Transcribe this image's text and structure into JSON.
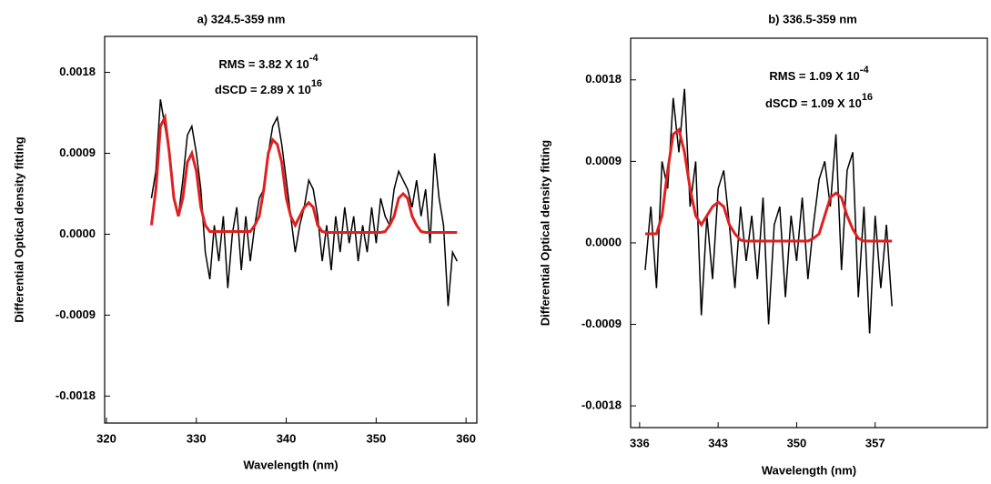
{
  "chart_data": [
    {
      "type": "line",
      "title": "a) 324.5-359 nm",
      "xlabel": "Wavelength (nm)",
      "ylabel": "Differential Optical density fitting",
      "annotations": [
        {
          "text": "RMS = 3.82 X 10",
          "sup": "-4"
        },
        {
          "text": "dSCD = 2.89 X 10",
          "sup": "16"
        }
      ],
      "xlim": [
        319.8,
        361.2
      ],
      "xticks": [
        320,
        330,
        340,
        350,
        360
      ],
      "ylim": [
        -0.0021,
        0.0022
      ],
      "yticks": [
        {
          "value": -0.0018,
          "label": "-0.0018"
        },
        {
          "value": -0.0009,
          "label": "-0.0009"
        },
        {
          "value": 0,
          "label": "0.0000"
        },
        {
          "value": 0.0009,
          "label": "0.0009"
        },
        0.0018
      ],
      "x": [
        325,
        325.5,
        326,
        326.5,
        327,
        327.5,
        328,
        328.5,
        329,
        329.5,
        330,
        330.5,
        331,
        331.5,
        332,
        332.5,
        333,
        333.5,
        334,
        334.5,
        335,
        335.5,
        336,
        336.5,
        337,
        337.5,
        338,
        338.5,
        339,
        339.5,
        340,
        340.5,
        341,
        341.5,
        342,
        342.5,
        343,
        343.5,
        344,
        344.5,
        345,
        345.5,
        346,
        346.5,
        347,
        347.5,
        348,
        348.5,
        349,
        349.5,
        350,
        350.5,
        351,
        351.5,
        352,
        352.5,
        353,
        353.5,
        354,
        354.5,
        355,
        355.5,
        356,
        356.5,
        357,
        357.5,
        358,
        358.5,
        359
      ],
      "series": [
        {
          "color": "#000000",
          "values": [
            0.0004,
            0.0007,
            0.0015,
            0.0012,
            0.0009,
            0.0004,
            0.0002,
            0.0006,
            0.0011,
            0.0012,
            0.0009,
            0.0005,
            -0.0002,
            -0.0005,
            0.0001,
            -0.0003,
            0.0002,
            -0.0006,
            0,
            0.0003,
            -0.0004,
            0.0002,
            -0.0003,
            0.0001,
            0.0004,
            0.0005,
            0.0009,
            0.0012,
            0.0013,
            0.001,
            0.0006,
            0.0002,
            -0.0002,
            0.0001,
            0.0003,
            0.0006,
            0.0005,
            0.0002,
            -0.0003,
            0.0001,
            -0.0004,
            0.0002,
            -0.0002,
            0.0003,
            -0.0001,
            0.0002,
            -0.0003,
            0.0001,
            -0.0002,
            0.0003,
            -0.0001,
            0.0004,
            0.0002,
            0.0001,
            0.0005,
            0.0007,
            0.0006,
            0.0005,
            0.0003,
            0.0006,
            0.0002,
            0.0005,
            -0.0001,
            0.0009,
            0.0004,
            0.0001,
            -0.0008,
            -0.0002,
            -0.0003
          ]
        },
        {
          "color": "#e02020",
          "values": [
            0.0001,
            0.0005,
            0.0012,
            0.0013,
            0.0009,
            0.0004,
            0.0002,
            0.0004,
            0.0008,
            0.0009,
            0.0007,
            0.0003,
            0.0001,
            3e-05,
            3e-05,
            3e-05,
            3e-05,
            3e-05,
            3e-05,
            3e-05,
            3e-05,
            3e-05,
            3e-05,
            0.0001,
            0.0002,
            0.0005,
            0.0009,
            0.00105,
            0.001,
            0.0008,
            0.0004,
            0.0002,
            0.0001,
            0.0002,
            0.0003,
            0.00035,
            0.0003,
            0.0001,
            3e-05,
            2e-05,
            2e-05,
            2e-05,
            2e-05,
            2e-05,
            2e-05,
            2e-05,
            2e-05,
            2e-05,
            2e-05,
            2e-05,
            2e-05,
            2e-05,
            3e-05,
            0.0001,
            0.0002,
            0.0004,
            0.00045,
            0.0004,
            0.0002,
            0.0001,
            3e-05,
            2e-05,
            2e-05,
            2e-05,
            2e-05,
            2e-05,
            2e-05,
            2e-05,
            2e-05
          ]
        }
      ]
    },
    {
      "type": "line",
      "title": "b) 336.5-359 nm",
      "xlabel": "Wavelength (nm)",
      "ylabel": "Differential Optical density fitting",
      "annotations": [
        {
          "text": "RMS = 1.09 X 10",
          "sup": "-4"
        },
        {
          "text": "dSCD = 1.09 X 10",
          "sup": "16"
        }
      ],
      "xlim": [
        335.2,
        367
      ],
      "xticks": [
        336,
        343,
        350,
        357
      ],
      "ylim": [
        -0.00204,
        0.00226
      ],
      "yticks": [
        {
          "value": -0.0018,
          "label": "-0.0018"
        },
        {
          "value": -0.0009,
          "label": "-0.0009"
        },
        {
          "value": 0,
          "label": "0.0000"
        },
        {
          "value": 0.0009,
          "label": "0.0009"
        },
        0.0018
      ],
      "x": [
        336.5,
        337,
        337.5,
        338,
        338.5,
        339,
        339.5,
        340,
        340.5,
        341,
        341.5,
        342,
        342.5,
        343,
        343.5,
        344,
        344.5,
        345,
        345.5,
        346,
        346.5,
        347,
        347.5,
        348,
        348.5,
        349,
        349.5,
        350,
        350.5,
        351,
        351.5,
        352,
        352.5,
        353,
        353.5,
        354,
        354.5,
        355,
        355.5,
        356,
        356.5,
        357,
        357.5,
        358,
        358.5
      ],
      "series": [
        {
          "color": "#000000",
          "values": [
            -0.0003,
            0.0004,
            -0.0005,
            0.0009,
            0.0006,
            0.0016,
            0.001,
            0.0017,
            0.0004,
            0.0009,
            -0.0008,
            0.0003,
            -0.0004,
            0.0006,
            0.0008,
            0.0002,
            -0.0005,
            0.0004,
            -0.0002,
            0.0003,
            -0.0004,
            0.0005,
            -0.0009,
            0.0002,
            0.0004,
            -0.0006,
            0.0003,
            -0.0002,
            0.0005,
            -0.0004,
            0.0002,
            0.0007,
            0.0009,
            0.0004,
            0.0012,
            -0.0003,
            0.0008,
            0.001,
            -0.0006,
            0.0004,
            -0.001,
            0.0003,
            -0.0005,
            0.0002,
            -0.0007
          ]
        },
        {
          "color": "#e02020",
          "values": [
            0.0001,
            0.0001,
            0.0001,
            0.0003,
            0.0008,
            0.0012,
            0.00125,
            0.001,
            0.0006,
            0.0003,
            0.0002,
            0.0003,
            0.0004,
            0.00045,
            0.0004,
            0.0002,
            0.0001,
            3e-05,
            2e-05,
            2e-05,
            2e-05,
            2e-05,
            2e-05,
            2e-05,
            2e-05,
            2e-05,
            2e-05,
            2e-05,
            2e-05,
            2e-05,
            5e-05,
            0.0001,
            0.0003,
            0.0005,
            0.00055,
            0.0005,
            0.0003,
            0.00015,
            5e-05,
            2e-05,
            2e-05,
            2e-05,
            2e-05,
            2e-05,
            2e-05
          ]
        }
      ]
    }
  ]
}
